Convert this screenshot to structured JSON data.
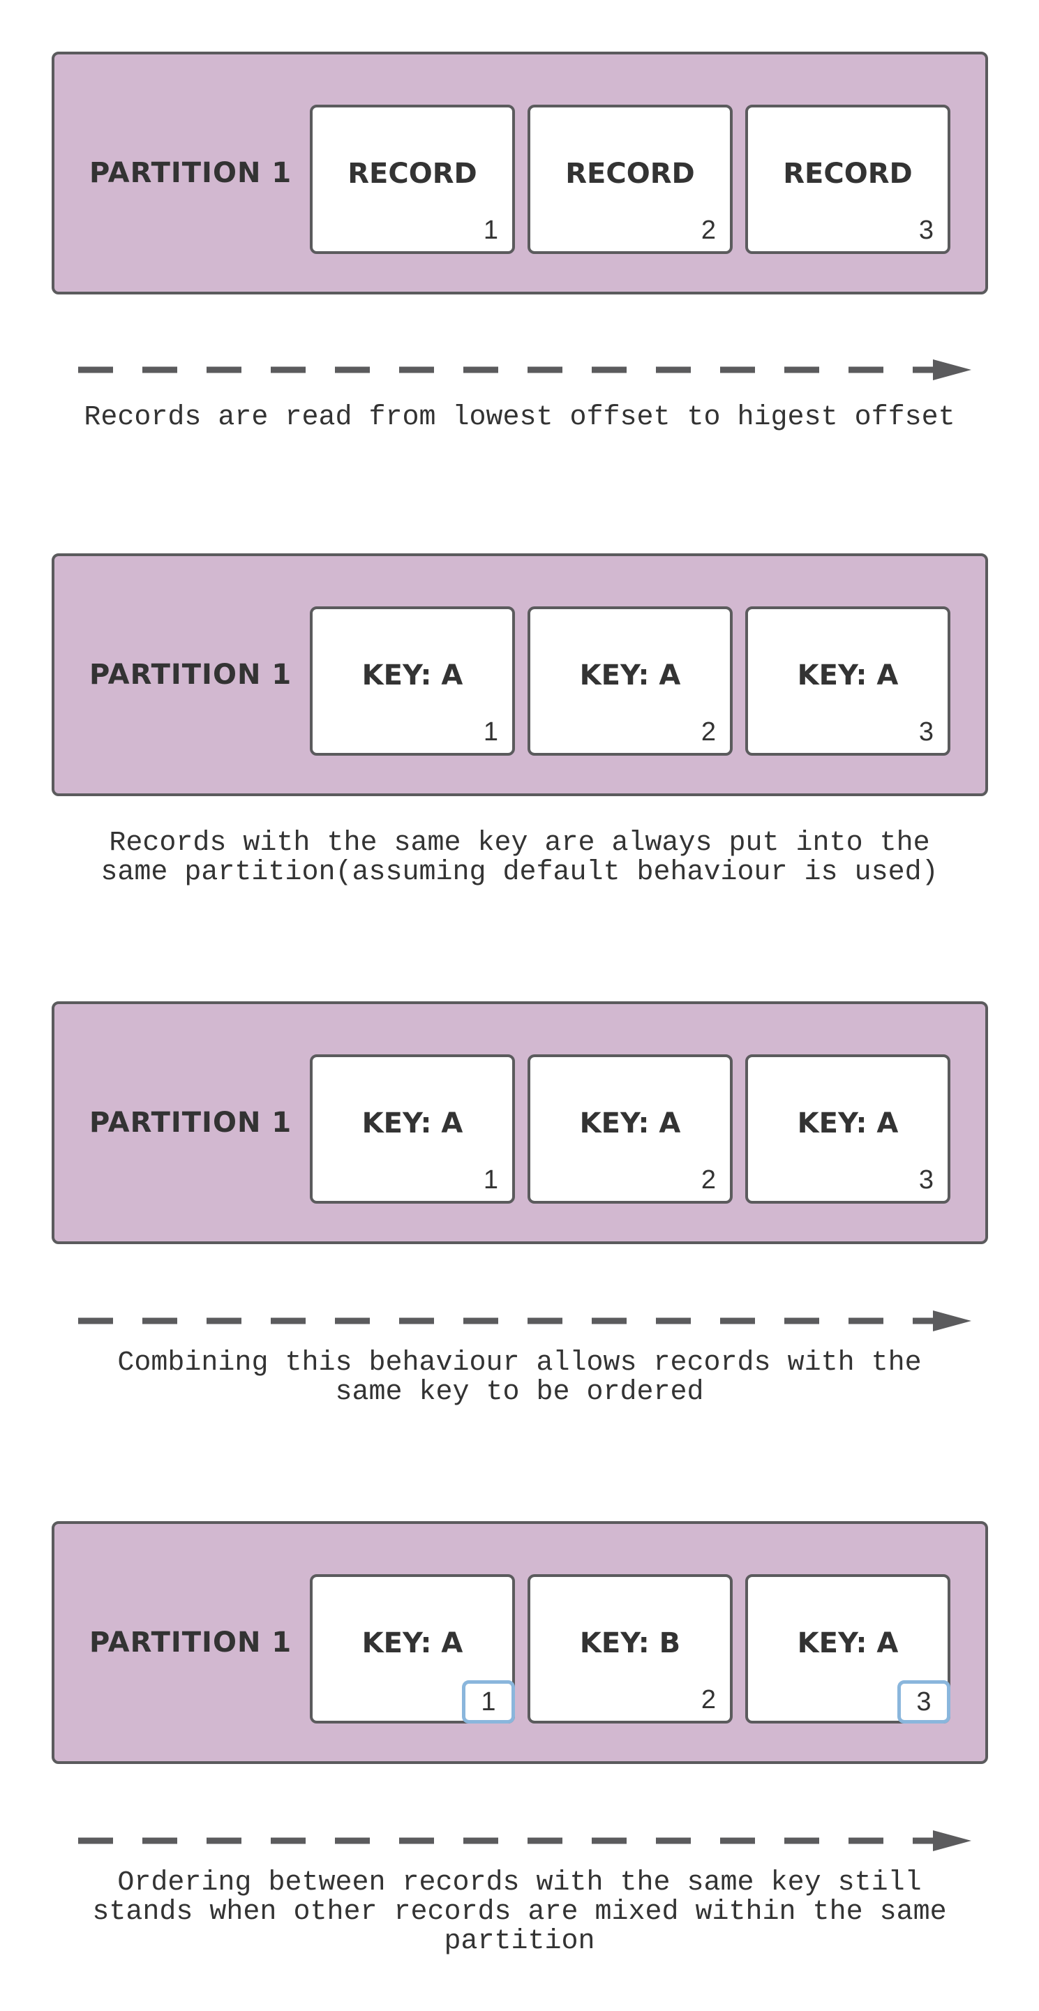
{
  "panels": [
    {
      "label": "PARTITION 1",
      "records": [
        {
          "label": "RECORD",
          "offset": "1",
          "highlight": false
        },
        {
          "label": "RECORD",
          "offset": "2",
          "highlight": false
        },
        {
          "label": "RECORD",
          "offset": "3",
          "highlight": false
        }
      ],
      "caption": [
        "Records are read from lowest offset to higest offset"
      ]
    },
    {
      "label": "PARTITION 1",
      "records": [
        {
          "label": "KEY: A",
          "offset": "1",
          "highlight": false
        },
        {
          "label": "KEY: A",
          "offset": "2",
          "highlight": false
        },
        {
          "label": "KEY: A",
          "offset": "3",
          "highlight": false
        }
      ],
      "caption": [
        "Records with the same key are always put into the",
        "same partition(assuming default behaviour is used)"
      ]
    },
    {
      "label": "PARTITION 1",
      "records": [
        {
          "label": "KEY: A",
          "offset": "1",
          "highlight": false
        },
        {
          "label": "KEY: A",
          "offset": "2",
          "highlight": false
        },
        {
          "label": "KEY: A",
          "offset": "3",
          "highlight": false
        }
      ],
      "caption": [
        "Combining this behaviour allows records with the",
        "same key to be ordered"
      ]
    },
    {
      "label": "PARTITION 1",
      "records": [
        {
          "label": "KEY: A",
          "offset": "1",
          "highlight": true
        },
        {
          "label": "KEY: B",
          "offset": "2",
          "highlight": false
        },
        {
          "label": "KEY: A",
          "offset": "3",
          "highlight": true
        }
      ],
      "caption": [
        "Ordering between records with the same key still",
        "stands when other records are mixed within the same",
        "partition"
      ]
    }
  ],
  "colors": {
    "panel_fill": "#d2b8d0",
    "border": "#5b5b5d",
    "highlight": "#8ab6dc"
  }
}
